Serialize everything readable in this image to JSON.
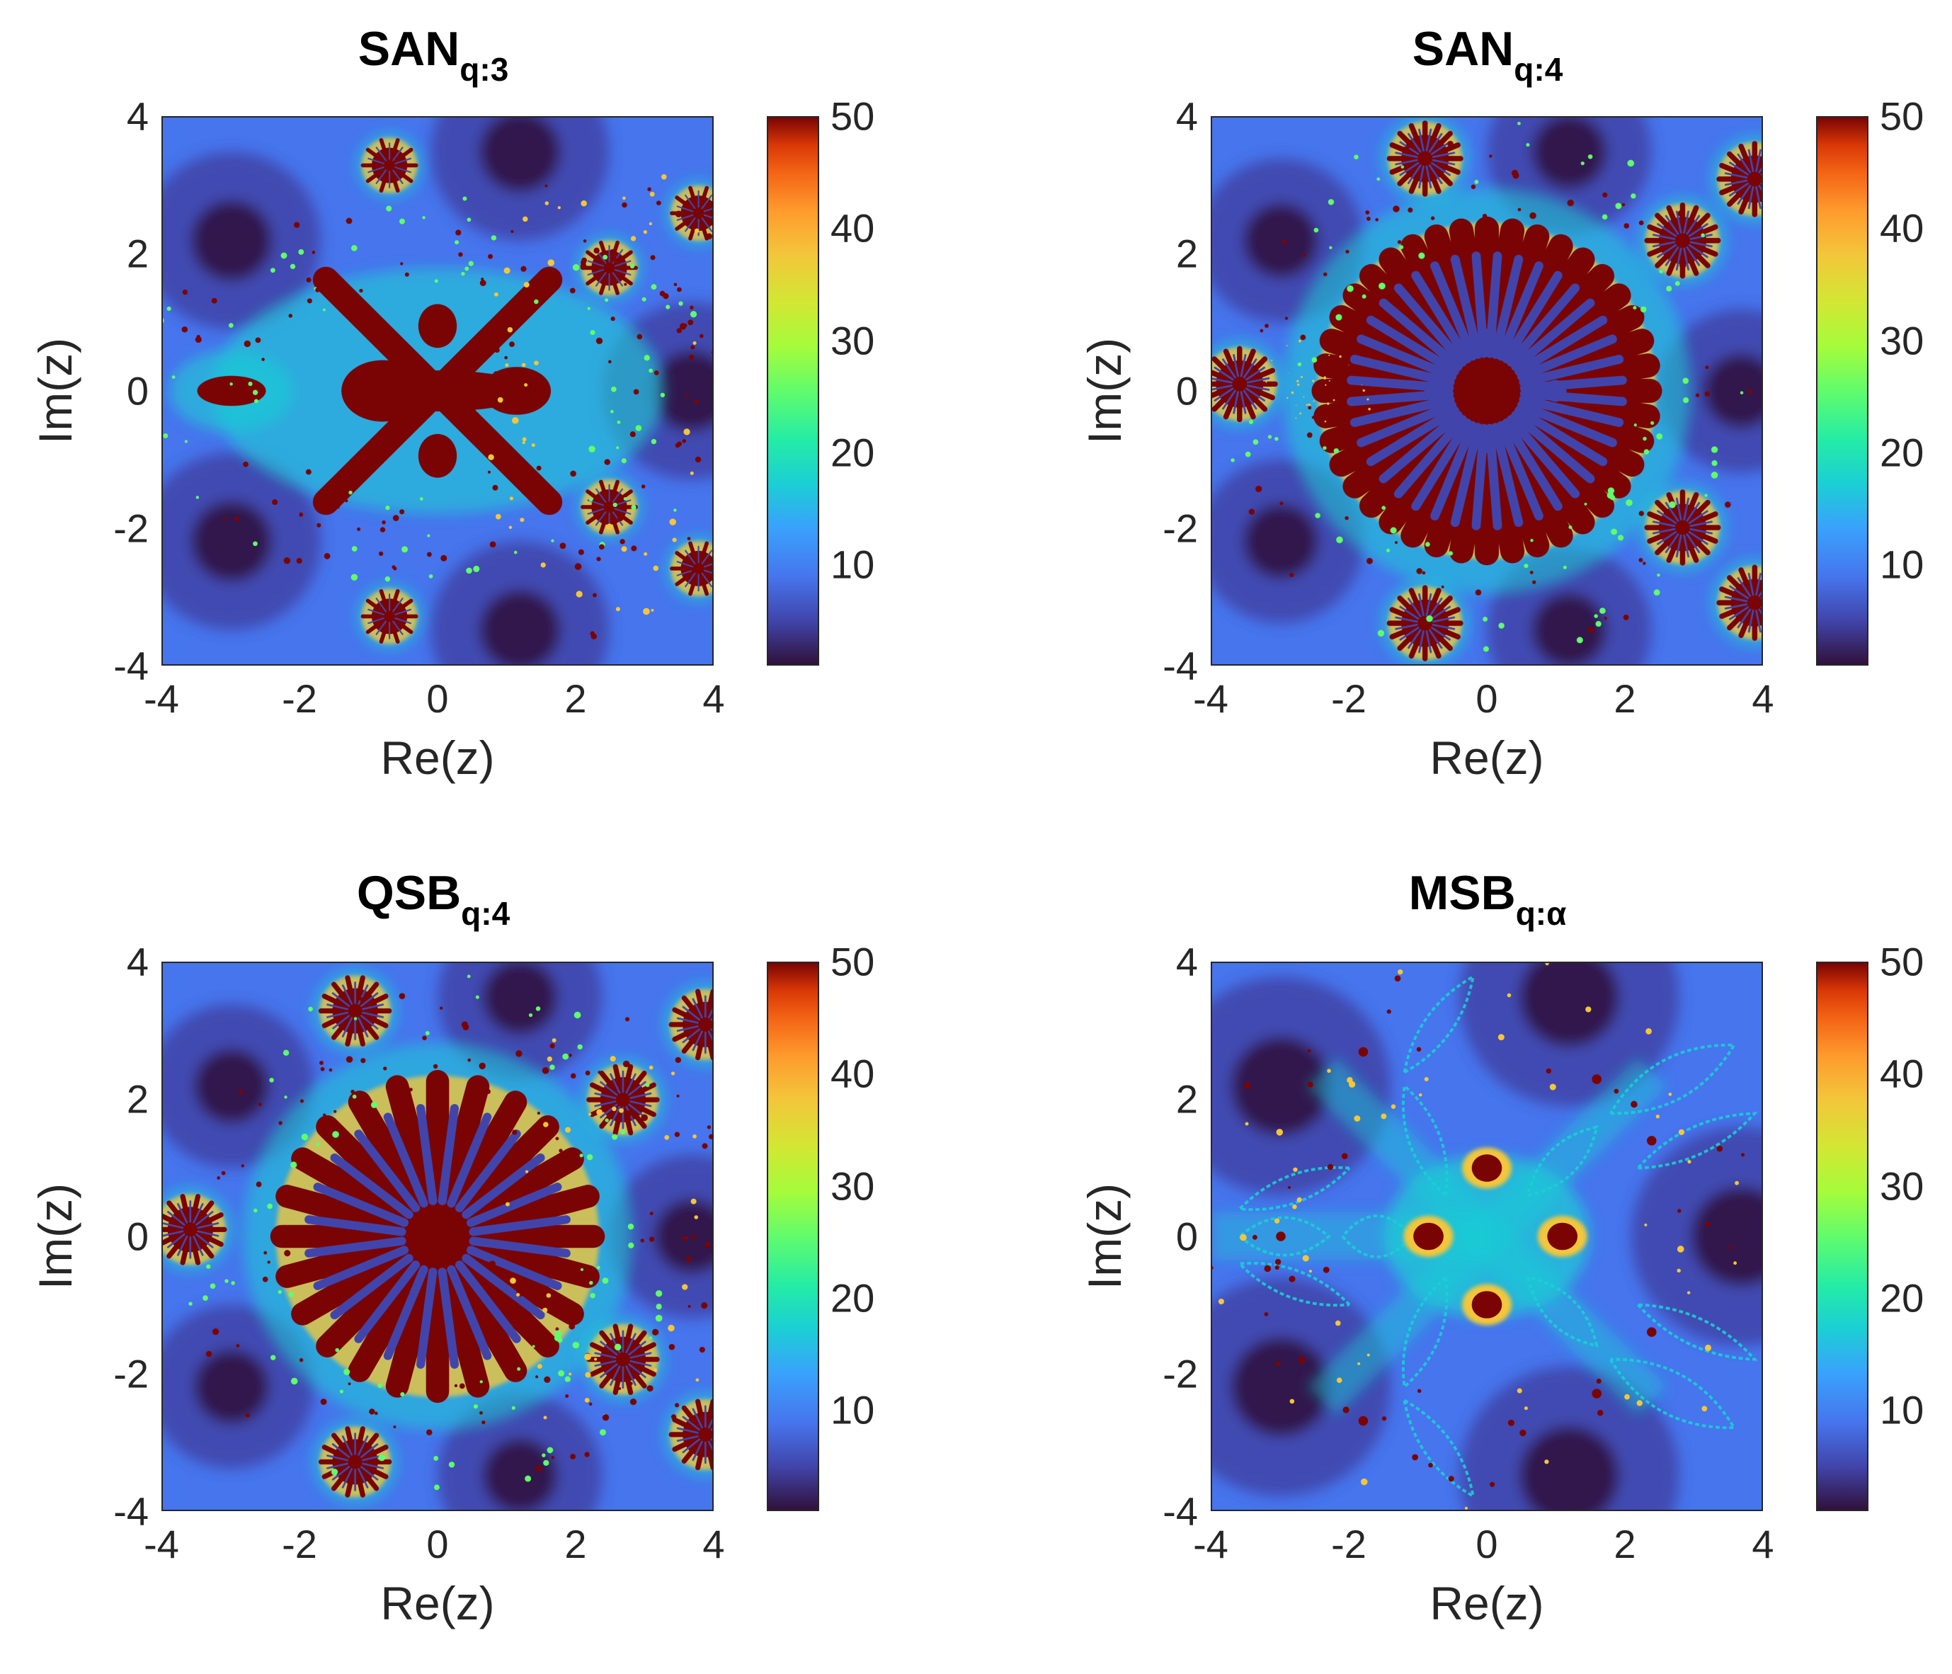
{
  "panels": [
    {
      "title_main": "SAN",
      "title_sub": "q:3",
      "pattern": "san3"
    },
    {
      "title_main": "SAN",
      "title_sub": "q:4",
      "pattern": "san4"
    },
    {
      "title_main": "QSB",
      "title_sub": "q:4",
      "pattern": "qsb4"
    },
    {
      "title_main": "MSB",
      "title_sub": "q:α",
      "pattern": "msb"
    }
  ],
  "chart_data": {
    "type": "heatmap",
    "xlabel": "Re(z)",
    "ylabel": "Im(z)",
    "xlim": [
      -4,
      4
    ],
    "ylim": [
      -4,
      4
    ],
    "x_ticks": [
      "-4",
      "-2",
      "0",
      "2",
      "4"
    ],
    "y_ticks": [
      "4",
      "2",
      "0",
      "-2",
      "-4"
    ],
    "colorbar": {
      "range": [
        1,
        50
      ],
      "ticks": [
        "50",
        "40",
        "30",
        "20",
        "10"
      ],
      "colormap": "turbo"
    }
  },
  "colors": {
    "background_dark": "#30123b",
    "background_mid": "#4145ab",
    "background_light": "#4675ed",
    "boundary_cyan": "#1bcfd4",
    "boundary_green": "#61fc6c",
    "boundary_yellow": "#f3c63a",
    "boundary_orange": "#fe9b2d",
    "core_red": "#7a0403"
  }
}
